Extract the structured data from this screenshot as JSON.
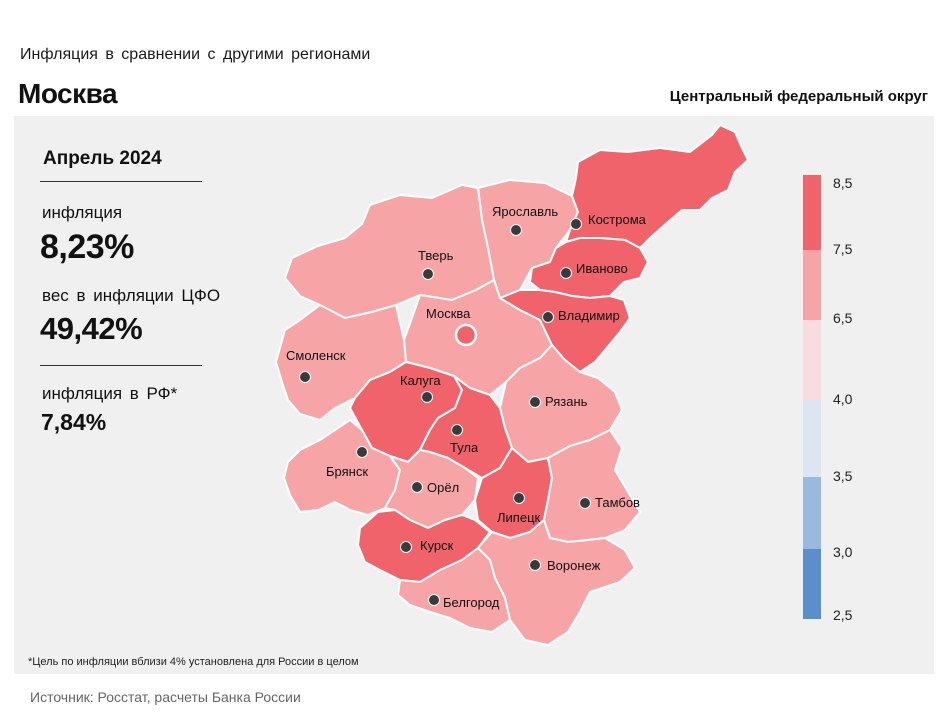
{
  "header": {
    "subtitle": "Инфляция в сравнении с другими регионами",
    "region": "Москва",
    "district": "Центральный федеральный округ"
  },
  "info": {
    "period": "Апрель 2024",
    "inflation_label": "инфляция",
    "inflation_value": "8,23%",
    "weight_label": "вес в инфляции ЦФО",
    "weight_value": "49,42%",
    "rf_label": "инфляция в РФ*",
    "rf_value": "7,84%"
  },
  "footnote": "*Цель по инфляции вблизи 4% установлена для России в целом",
  "source": "Источник: Росстат, расчеты Банка России",
  "legend": {
    "ticks": [
      "8,5",
      "7,5",
      "6,5",
      "4,0",
      "3,5",
      "3,0",
      "2,5"
    ],
    "colors": [
      "#f0636a",
      "#f7a4a7",
      "#f9dcdf",
      "#dce6f3",
      "#9bb9dd",
      "#5b8fcc"
    ]
  },
  "colors": {
    "high": "#f0636a",
    "mid": "#f7a4a7",
    "border": "#ffffff",
    "selected": "#f0636a"
  },
  "regions": [
    {
      "name": "Ярославль",
      "level": "mid"
    },
    {
      "name": "Кострома",
      "level": "high"
    },
    {
      "name": "Тверь",
      "level": "mid"
    },
    {
      "name": "Иваново",
      "level": "high"
    },
    {
      "name": "Москва",
      "level": "mid"
    },
    {
      "name": "Владимир",
      "level": "high"
    },
    {
      "name": "Смоленск",
      "level": "mid"
    },
    {
      "name": "Калуга",
      "level": "high"
    },
    {
      "name": "Рязань",
      "level": "mid"
    },
    {
      "name": "Тула",
      "level": "high"
    },
    {
      "name": "Брянск",
      "level": "mid"
    },
    {
      "name": "Орёл",
      "level": "mid"
    },
    {
      "name": "Липецк",
      "level": "high"
    },
    {
      "name": "Тамбов",
      "level": "mid"
    },
    {
      "name": "Курск",
      "level": "high"
    },
    {
      "name": "Воронеж",
      "level": "mid"
    },
    {
      "name": "Белгород",
      "level": "mid"
    }
  ]
}
